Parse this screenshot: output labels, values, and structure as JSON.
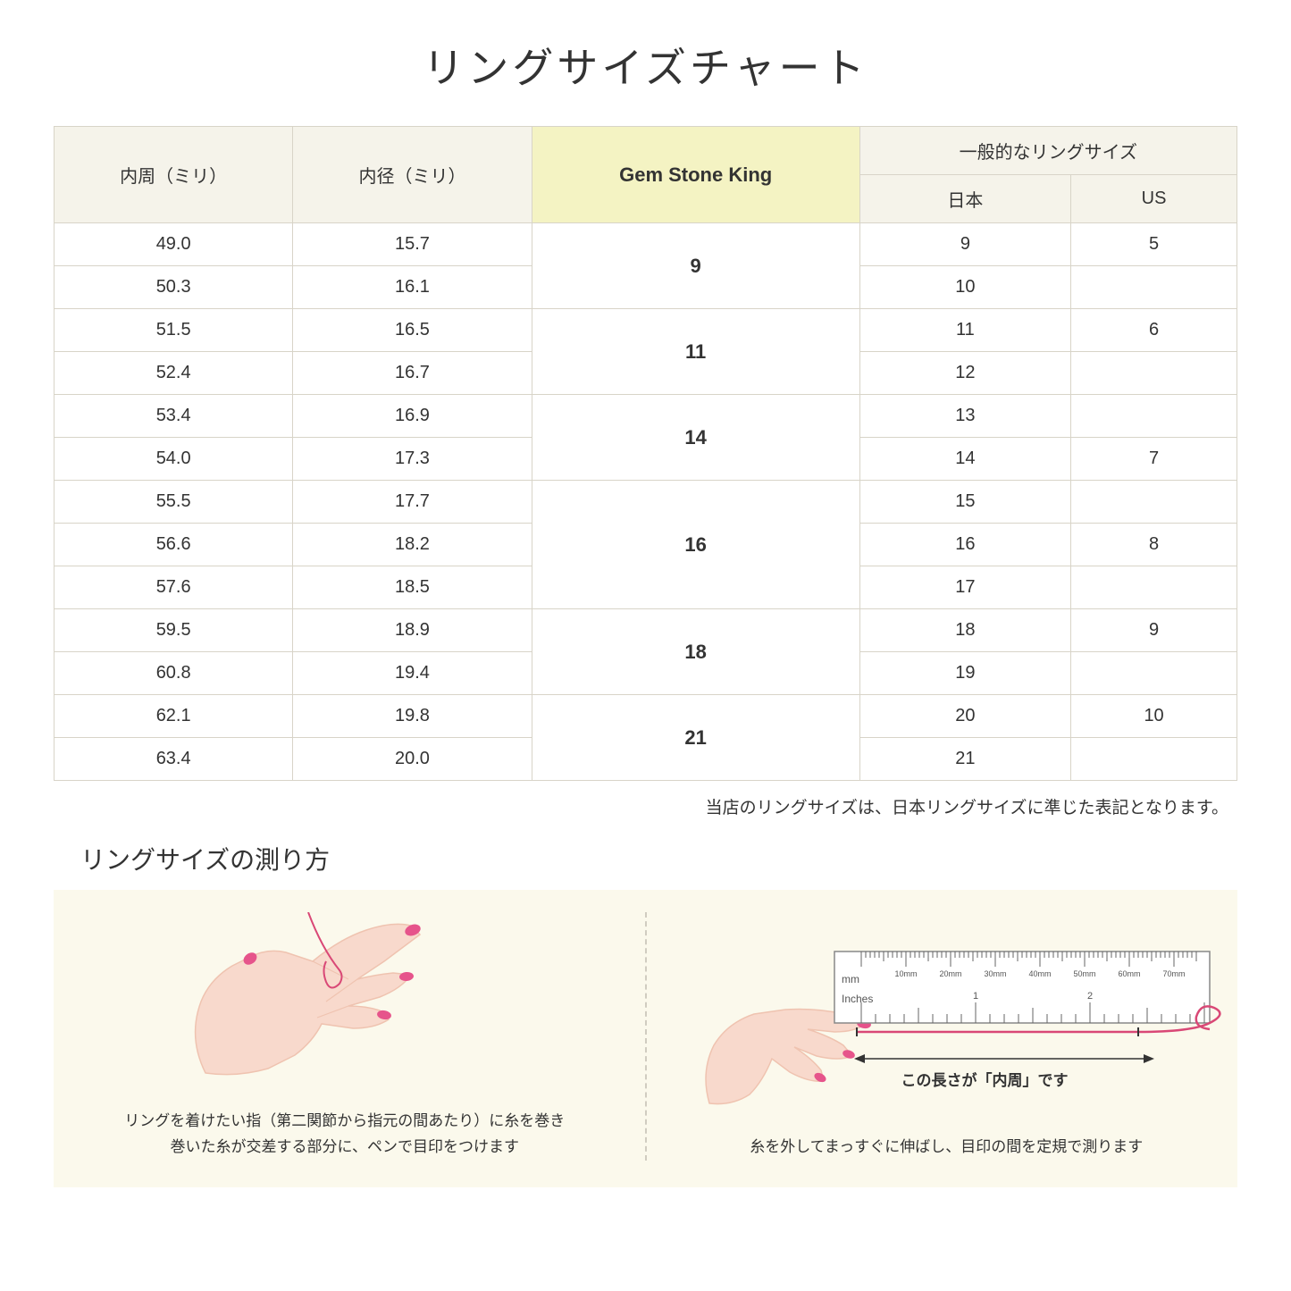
{
  "title": "リングサイズチャート",
  "table": {
    "headers": {
      "col1": "内周（ミリ）",
      "col2": "内径（ミリ）",
      "col3": "Gem Stone King",
      "col4_group": "一般的なリングサイズ",
      "col4a": "日本",
      "col4b": "US"
    },
    "groups": [
      {
        "gsk": "9",
        "rows": [
          {
            "c": "49.0",
            "d": "15.7",
            "jp": "9",
            "us": "5"
          },
          {
            "c": "50.3",
            "d": "16.1",
            "jp": "10",
            "us": ""
          }
        ]
      },
      {
        "gsk": "11",
        "rows": [
          {
            "c": "51.5",
            "d": "16.5",
            "jp": "11",
            "us": "6"
          },
          {
            "c": "52.4",
            "d": "16.7",
            "jp": "12",
            "us": ""
          }
        ]
      },
      {
        "gsk": "14",
        "rows": [
          {
            "c": "53.4",
            "d": "16.9",
            "jp": "13",
            "us": ""
          },
          {
            "c": "54.0",
            "d": "17.3",
            "jp": "14",
            "us": "7"
          }
        ]
      },
      {
        "gsk": "16",
        "rows": [
          {
            "c": "55.5",
            "d": "17.7",
            "jp": "15",
            "us": ""
          },
          {
            "c": "56.6",
            "d": "18.2",
            "jp": "16",
            "us": "8"
          },
          {
            "c": "57.6",
            "d": "18.5",
            "jp": "17",
            "us": ""
          }
        ]
      },
      {
        "gsk": "18",
        "rows": [
          {
            "c": "59.5",
            "d": "18.9",
            "jp": "18",
            "us": "9"
          },
          {
            "c": "60.8",
            "d": "19.4",
            "jp": "19",
            "us": ""
          }
        ]
      },
      {
        "gsk": "21",
        "rows": [
          {
            "c": "62.1",
            "d": "19.8",
            "jp": "20",
            "us": "10"
          },
          {
            "c": "63.4",
            "d": "20.0",
            "jp": "21",
            "us": ""
          }
        ]
      }
    ]
  },
  "note": "当店のリングサイズは、日本リングサイズに準じた表記となります。",
  "howto": {
    "title": "リングサイズの測り方",
    "left_caption": "リングを着けたい指（第二関節から指元の間あたり）に糸を巻き\n巻いた糸が交差する部分に、ペンで目印をつけます",
    "right_caption": "糸を外してまっすぐに伸ばし、目印の間を定規で測ります",
    "length_label": "この長さが「内周」です",
    "ruler_mm": "mm",
    "ruler_inches": "Inches",
    "ruler_ticks": [
      "10mm",
      "20mm",
      "30mm",
      "40mm",
      "50mm",
      "60mm",
      "70mm"
    ]
  },
  "colors": {
    "header_bg": "#f5f3ea",
    "highlight_bg": "#f4f3c3",
    "border": "#d8d4c8",
    "howto_bg": "#fbf9ec",
    "skin": "#f8d9cc",
    "skin_dark": "#efc3b0",
    "nail": "#e6548b",
    "thread": "#d94876"
  }
}
